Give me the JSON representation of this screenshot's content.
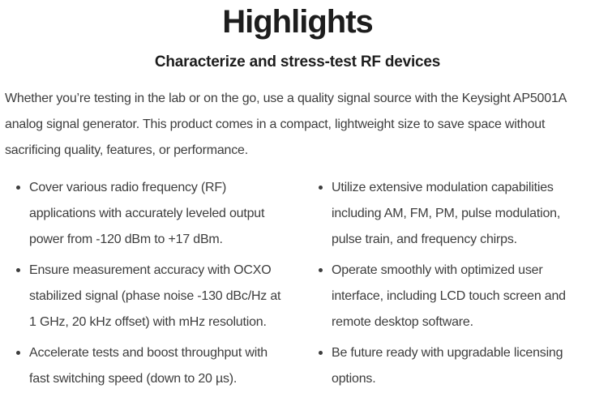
{
  "page": {
    "title": "Highlights",
    "subtitle": "Characterize and stress-test RF devices",
    "intro": "Whether you’re testing in the lab or on the go, use a quality signal source with the Keysight AP5001A analog signal generator. This product comes in a compact, lightweight size to save space without sacrificing quality, features, or performance.",
    "columns": {
      "left": [
        "Cover various radio frequency (RF) applications with accurately leveled output power from -120 dBm to +17 dBm.",
        "Ensure measurement accuracy with OCXO stabilized signal (phase noise -130 dBc/Hz at 1 GHz, 20 kHz offset) with mHz resolution.",
        "Accelerate tests and boost throughput with fast switching speed (down to 20 µs)."
      ],
      "right": [
        "Utilize extensive modulation capabilities including AM, FM, PM, pulse modulation, pulse train, and frequency chirps.",
        "Operate smoothly with optimized user interface, including LCD touch screen and remote desktop software.",
        "Be future ready with upgradable licensing options."
      ]
    },
    "icons": {
      "bullet": "•"
    },
    "colors": {
      "heading": "#1d1d1d",
      "body_text": "#3d3d3d",
      "background": "#ffffff"
    }
  }
}
